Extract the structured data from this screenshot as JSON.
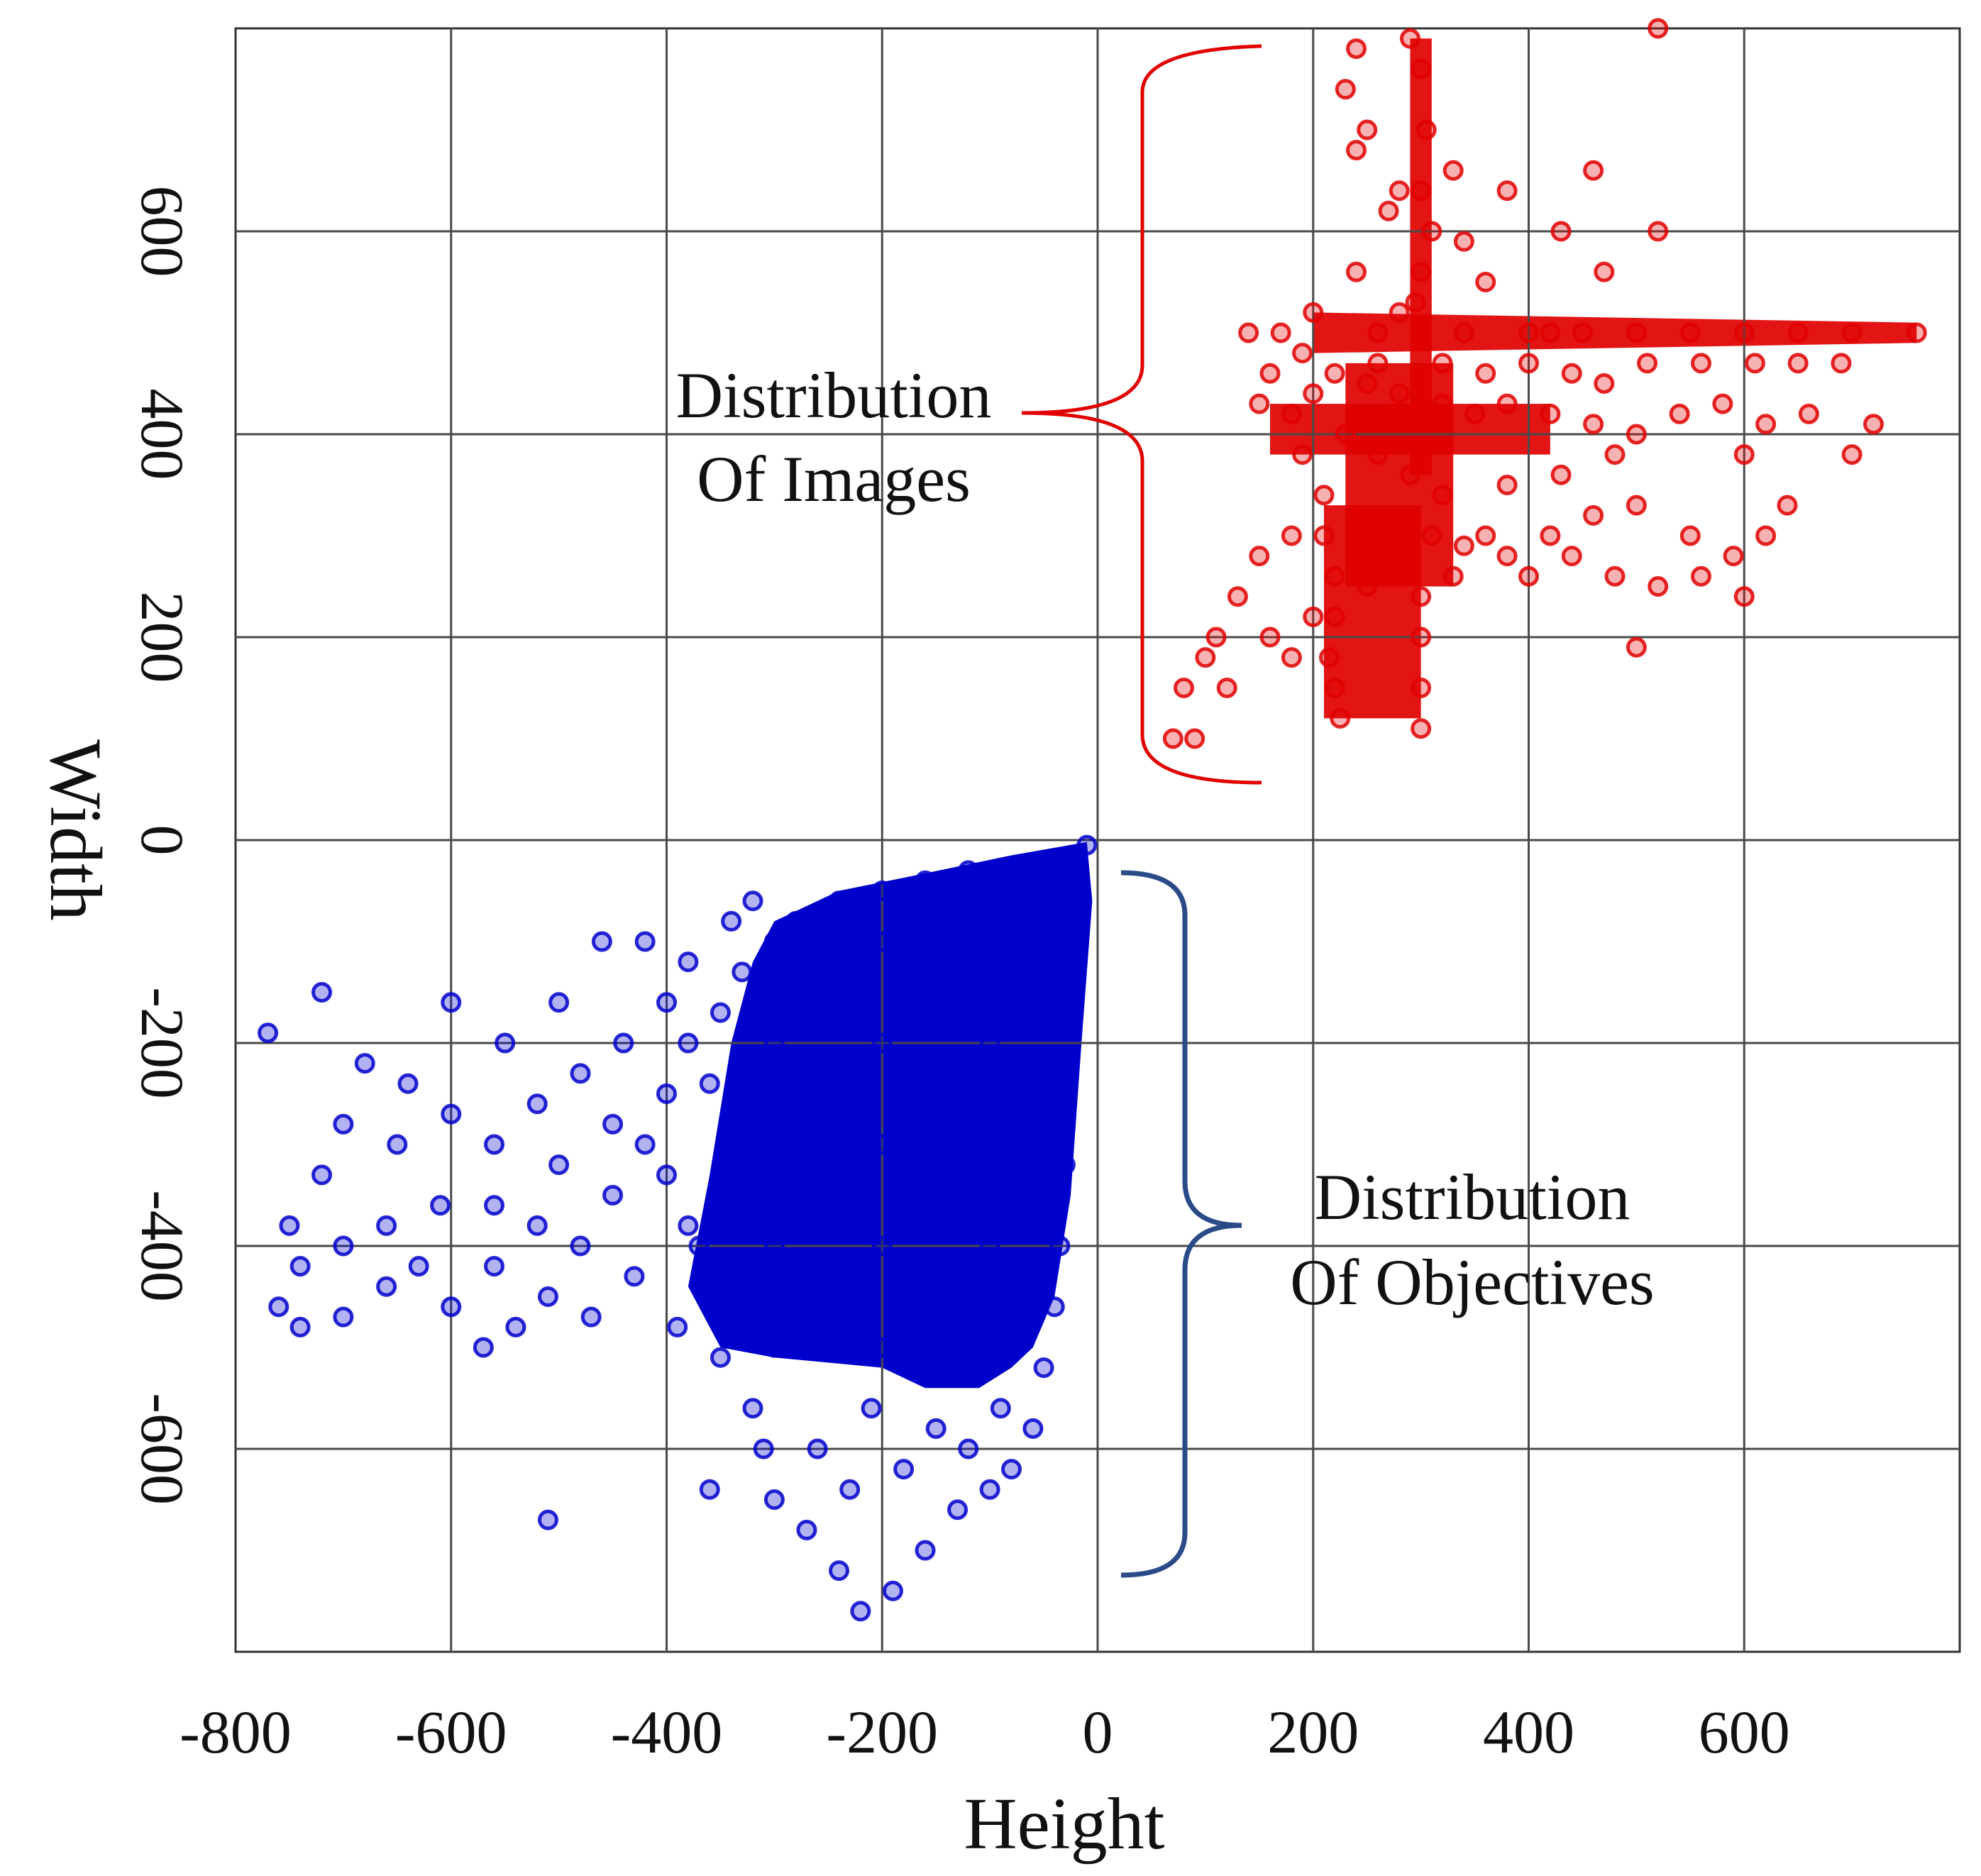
{
  "chart_data": {
    "type": "scatter",
    "title": "",
    "xlabel": "Height",
    "ylabel": "Width",
    "xlim": [
      -800,
      800
    ],
    "ylim": [
      -800,
      800
    ],
    "grid": true,
    "x_ticks": [
      -800,
      -600,
      -400,
      -200,
      0,
      200,
      400,
      600
    ],
    "y_ticks": [
      -600,
      -400,
      -200,
      0,
      200,
      400,
      600
    ],
    "x_tick_labels": [
      "-800",
      "-600",
      "-400",
      "-200",
      "0",
      "200",
      "400",
      "600"
    ],
    "y_tick_labels": [
      "-600",
      "-400",
      "-200",
      "0",
      "200",
      "400",
      "600"
    ],
    "series": [
      {
        "name": "Distribution Of Images",
        "color": "#e00000",
        "points": [
          [
            300,
            760
          ],
          [
            305,
            700
          ],
          [
            300,
            640
          ],
          [
            310,
            600
          ],
          [
            300,
            560
          ],
          [
            295,
            530
          ],
          [
            260,
            500
          ],
          [
            300,
            500
          ],
          [
            340,
            500
          ],
          [
            400,
            500
          ],
          [
            450,
            500
          ],
          [
            500,
            500
          ],
          [
            550,
            500
          ],
          [
            600,
            500
          ],
          [
            650,
            500
          ],
          [
            700,
            500
          ],
          [
            760,
            500
          ],
          [
            220,
            460
          ],
          [
            250,
            450
          ],
          [
            280,
            440
          ],
          [
            320,
            430
          ],
          [
            350,
            420
          ],
          [
            380,
            430
          ],
          [
            420,
            420
          ],
          [
            460,
            410
          ],
          [
            500,
            400
          ],
          [
            540,
            420
          ],
          [
            580,
            430
          ],
          [
            620,
            410
          ],
          [
            660,
            420
          ],
          [
            720,
            410
          ],
          [
            600,
            380
          ],
          [
            480,
            380
          ],
          [
            430,
            360
          ],
          [
            380,
            350
          ],
          [
            230,
            400
          ],
          [
            260,
            380
          ],
          [
            290,
            360
          ],
          [
            320,
            340
          ],
          [
            210,
            340
          ],
          [
            240,
            320
          ],
          [
            280,
            300
          ],
          [
            310,
            300
          ],
          [
            340,
            290
          ],
          [
            380,
            280
          ],
          [
            420,
            300
          ],
          [
            460,
            320
          ],
          [
            500,
            330
          ],
          [
            550,
            300
          ],
          [
            590,
            280
          ],
          [
            640,
            330
          ],
          [
            700,
            380
          ],
          [
            210,
            300
          ],
          [
            220,
            260
          ],
          [
            220,
            220
          ],
          [
            215,
            180
          ],
          [
            220,
            150
          ],
          [
            225,
            120
          ],
          [
            180,
            300
          ],
          [
            150,
            280
          ],
          [
            130,
            240
          ],
          [
            110,
            200
          ],
          [
            100,
            180
          ],
          [
            80,
            150
          ],
          [
            70,
            100
          ],
          [
            90,
            100
          ],
          [
            120,
            150
          ],
          [
            160,
            200
          ],
          [
            200,
            220
          ],
          [
            180,
            180
          ],
          [
            250,
            250
          ],
          [
            300,
            240
          ],
          [
            300,
            200
          ],
          [
            300,
            150
          ],
          [
            300,
            110
          ],
          [
            330,
            260
          ],
          [
            360,
            300
          ],
          [
            400,
            260
          ],
          [
            440,
            280
          ],
          [
            480,
            260
          ],
          [
            520,
            250
          ],
          [
            560,
            260
          ],
          [
            600,
            240
          ],
          [
            620,
            300
          ],
          [
            500,
            190
          ],
          [
            470,
            560
          ],
          [
            520,
            600
          ],
          [
            430,
            600
          ],
          [
            380,
            640
          ],
          [
            330,
            660
          ],
          [
            280,
            640
          ],
          [
            250,
            700
          ],
          [
            230,
            740
          ],
          [
            240,
            680
          ],
          [
            270,
            620
          ],
          [
            240,
            560
          ],
          [
            200,
            520
          ],
          [
            190,
            480
          ],
          [
            170,
            500
          ],
          [
            140,
            500
          ],
          [
            160,
            460
          ],
          [
            150,
            430
          ],
          [
            180,
            420
          ],
          [
            190,
            380
          ],
          [
            200,
            440
          ],
          [
            260,
            470
          ],
          [
            280,
            520
          ],
          [
            320,
            470
          ],
          [
            360,
            460
          ],
          [
            400,
            470
          ],
          [
            420,
            500
          ],
          [
            440,
            460
          ],
          [
            470,
            450
          ],
          [
            510,
            470
          ],
          [
            560,
            470
          ],
          [
            610,
            470
          ],
          [
            650,
            470
          ],
          [
            690,
            470
          ],
          [
            240,
            780
          ],
          [
            290,
            790
          ],
          [
            520,
            800
          ],
          [
            360,
            550
          ],
          [
            340,
            590
          ],
          [
            460,
            660
          ]
        ]
      },
      {
        "name": "Distribution Of Objectives",
        "color": "#0000cc",
        "points": [
          [
            -10,
            -5
          ],
          [
            -40,
            -20
          ],
          [
            -80,
            -30
          ],
          [
            -120,
            -30
          ],
          [
            -160,
            -40
          ],
          [
            -200,
            -50
          ],
          [
            -240,
            -60
          ],
          [
            -280,
            -80
          ],
          [
            -300,
            -100
          ],
          [
            -330,
            -130
          ],
          [
            -350,
            -170
          ],
          [
            -20,
            -80
          ],
          [
            -25,
            -160
          ],
          [
            -30,
            -240
          ],
          [
            -30,
            -320
          ],
          [
            -35,
            -400
          ],
          [
            -40,
            -460
          ],
          [
            -50,
            -520
          ],
          [
            -60,
            -580
          ],
          [
            -80,
            -620
          ],
          [
            -100,
            -640
          ],
          [
            -130,
            -660
          ],
          [
            -160,
            -700
          ],
          [
            -190,
            -740
          ],
          [
            -220,
            -760
          ],
          [
            -240,
            -720
          ],
          [
            -270,
            -680
          ],
          [
            -300,
            -650
          ],
          [
            -310,
            -600
          ],
          [
            -320,
            -560
          ],
          [
            -350,
            -510
          ],
          [
            -360,
            -640
          ],
          [
            -200,
            -100
          ],
          [
            -200,
            -200
          ],
          [
            -200,
            -300
          ],
          [
            -200,
            -400
          ],
          [
            -200,
            -500
          ],
          [
            -250,
            -150
          ],
          [
            -250,
            -250
          ],
          [
            -250,
            -350
          ],
          [
            -250,
            -450
          ],
          [
            -150,
            -150
          ],
          [
            -150,
            -250
          ],
          [
            -150,
            -350
          ],
          [
            -150,
            -450
          ],
          [
            -100,
            -200
          ],
          [
            -100,
            -300
          ],
          [
            -100,
            -400
          ],
          [
            -300,
            -200
          ],
          [
            -300,
            -300
          ],
          [
            -300,
            -400
          ],
          [
            -300,
            -500
          ],
          [
            -60,
            -120
          ],
          [
            -60,
            -260
          ],
          [
            -70,
            -380
          ],
          [
            -330,
            -300
          ],
          [
            -340,
            -420
          ],
          [
            -380,
            -200
          ],
          [
            -400,
            -250
          ],
          [
            -420,
            -300
          ],
          [
            -450,
            -350
          ],
          [
            -480,
            -400
          ],
          [
            -510,
            -450
          ],
          [
            -540,
            -480
          ],
          [
            -570,
            -500
          ],
          [
            -600,
            -460
          ],
          [
            -630,
            -420
          ],
          [
            -660,
            -440
          ],
          [
            -700,
            -470
          ],
          [
            -740,
            -480
          ],
          [
            -760,
            -460
          ],
          [
            -750,
            -380
          ],
          [
            -720,
            -330
          ],
          [
            -700,
            -280
          ],
          [
            -680,
            -220
          ],
          [
            -640,
            -240
          ],
          [
            -600,
            -270
          ],
          [
            -560,
            -300
          ],
          [
            -520,
            -260
          ],
          [
            -480,
            -230
          ],
          [
            -440,
            -200
          ],
          [
            -400,
            -160
          ],
          [
            -420,
            -100
          ],
          [
            -460,
            -100
          ],
          [
            -500,
            -160
          ],
          [
            -550,
            -200
          ],
          [
            -600,
            -160
          ],
          [
            -650,
            -300
          ],
          [
            -720,
            -150
          ],
          [
            -770,
            -190
          ],
          [
            -510,
            -670
          ],
          [
            -370,
            -400
          ],
          [
            -390,
            -480
          ],
          [
            -430,
            -430
          ],
          [
            -470,
            -470
          ],
          [
            -520,
            -380
          ],
          [
            -560,
            -420
          ],
          [
            -610,
            -360
          ],
          [
            -660,
            -380
          ],
          [
            -700,
            -400
          ],
          [
            -740,
            -420
          ],
          [
            -560,
            -360
          ],
          [
            -500,
            -320
          ],
          [
            -450,
            -280
          ],
          [
            -400,
            -330
          ],
          [
            -380,
            -380
          ],
          [
            -360,
            -240
          ],
          [
            -340,
            -80
          ],
          [
            -320,
            -60
          ],
          [
            -380,
            -120
          ],
          [
            -120,
            -600
          ],
          [
            -180,
            -620
          ],
          [
            -230,
            -640
          ],
          [
            -260,
            -600
          ],
          [
            -210,
            -560
          ],
          [
            -150,
            -580
          ],
          [
            -90,
            -560
          ]
        ]
      }
    ],
    "annotations": [
      {
        "lines": [
          "Distribution",
          "Of Images"
        ],
        "bracket_color": "#e00000"
      },
      {
        "lines": [
          "Distribution",
          "Of Objectives"
        ],
        "bracket_color": "#2a4a88"
      }
    ]
  }
}
